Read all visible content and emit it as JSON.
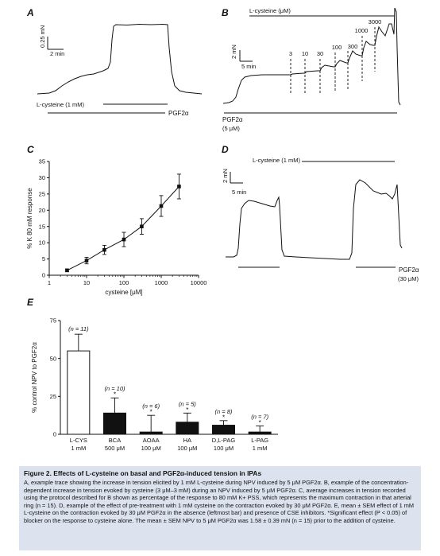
{
  "panel_a": {
    "letter": "A",
    "scale_y": "0.25 mN",
    "scale_x": "2 min",
    "bar1_label": "L-cysteine (1 mM)",
    "bar2_label": "PGF2α"
  },
  "panel_b": {
    "letter": "B",
    "top_label": "L-cysteine (μM)",
    "scale_y": "2 mN",
    "scale_x": "5 min",
    "concentrations": [
      "3",
      "10",
      "30",
      "100",
      "300",
      "1000",
      "3000"
    ],
    "pgf_label": "PGF2α",
    "pgf_conc": "(5 μM)"
  },
  "panel_d": {
    "letter": "D",
    "top_label": "L-cysteine (1 mM)",
    "scale_y": "2 mN",
    "scale_x": "5 min",
    "pgf_label": "PGF2α",
    "pgf_conc": "(30 μM)"
  },
  "chart_data": [
    {
      "panel": "C",
      "type": "line",
      "x_scale": "log",
      "xlabel": "cysteine [μM]",
      "ylabel": "% K 80 mM response",
      "xlim": [
        1,
        10000
      ],
      "ylim": [
        0,
        35
      ],
      "x_ticks": [
        "1",
        "10",
        "100",
        "1000",
        "10000"
      ],
      "y_ticks": [
        "0",
        "5",
        "10",
        "15",
        "20",
        "25",
        "30",
        "35"
      ],
      "x": [
        3,
        10,
        30,
        100,
        300,
        1000,
        3000
      ],
      "y": [
        1.5,
        4.5,
        7.8,
        11.0,
        15.0,
        21.3,
        27.3
      ],
      "error": [
        0.4,
        1.0,
        1.4,
        2.2,
        2.4,
        3.2,
        3.8
      ]
    },
    {
      "panel": "E",
      "type": "bar",
      "ylabel": "% control NPV to PGF2α",
      "ylim": [
        0,
        75
      ],
      "y_ticks": [
        "0",
        "25",
        "50",
        "75"
      ],
      "categories": [
        "L-CYS",
        "BCA",
        "AOAA",
        "HA",
        "D,L-PAG",
        "L-PAG"
      ],
      "doses": [
        "1 mM",
        "500 μM",
        "100 μM",
        "100 μM",
        "100 μM",
        "1 mM"
      ],
      "n_labels": [
        "(n = 11)",
        "(n = 10)",
        "(n = 6)",
        "(n = 5)",
        "(n = 8)",
        "(n = 7)"
      ],
      "values": [
        55,
        14,
        1.5,
        8,
        6,
        1.5
      ],
      "errors": [
        11,
        10,
        11,
        6,
        3,
        4
      ],
      "significant": [
        false,
        true,
        true,
        true,
        true,
        true
      ],
      "significance_mark": "*",
      "colors": [
        "#ffffff",
        "#111111",
        "#111111",
        "#111111",
        "#111111",
        "#111111"
      ]
    }
  ],
  "caption": {
    "title": "Figure 2. Effects of L-cysteine on basal and PGF2α-induced tension in IPAs",
    "body": "A, example trace showing the increase in tension elicited by 1 mM L-cysteine during NPV induced by 5 μM PGF2α. B, example of the concentration-dependent increase in tension evoked by cysteine (3 μM–3 mM) during an NPV induced by 5 μM PGF2α. C, average increases in tension recorded using the protocol described for B shown as percentage of the response to 80 mM K+ PSS, which represents the maximum contraction in that arterial ring (n = 15). D, example of the effect of pre-treatment with 1 mM cysteine on the contraction evoked by 30 μM PGF2α. E, mean ± SEM effect of 1 mM L-cysteine on the contraction evoked by 30 μM PGF2α in the absence (leftmost bar) and presence of CSE inhibitors. *Significant effect (P < 0.05) of blocker on the response to cysteine alone. The mean ± SEM NPV to 5 μM PGF2α was 1.58 ± 0.39 mN (n = 15) prior to the addition of cysteine."
  }
}
